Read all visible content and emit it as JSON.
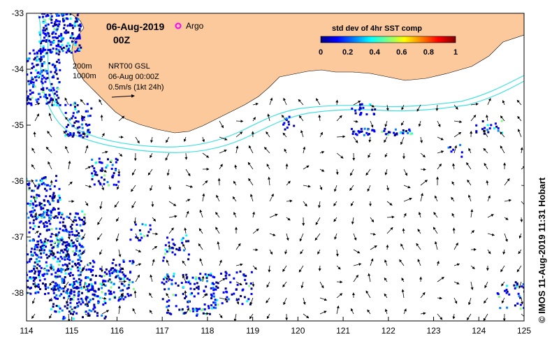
{
  "title": {
    "date": "06-Aug-2019",
    "time": "00Z",
    "argo_label": "Argo"
  },
  "legend": {
    "colorbar_title": "std dev of 4hr SST comp",
    "ticks": [
      "0",
      "0.2",
      "0.4",
      "0.6",
      "0.8",
      "1"
    ],
    "colors": [
      "#000080",
      "#0000ff",
      "#0080ff",
      "#00ffff",
      "#80ff80",
      "#ffff00",
      "#ff8000",
      "#ff0000",
      "#800000"
    ]
  },
  "info": {
    "contour_200": "200m",
    "contour_1000": "1000m",
    "product": "NRT00 GSL",
    "datetime": "06-Aug 00:00Z",
    "scale": "0.5m/s (1kt 24h)"
  },
  "axes": {
    "x_ticks": [
      "114",
      "115",
      "116",
      "117",
      "118",
      "119",
      "120",
      "121",
      "122",
      "123",
      "124",
      "125"
    ],
    "y_ticks": [
      "-33",
      "-34",
      "-35",
      "-36",
      "-37",
      "-38"
    ],
    "xlim": [
      114,
      125
    ],
    "ylim": [
      -38.5,
      -33
    ]
  },
  "credit": "© IMOS 11-Aug-2019 11:31 Hobart",
  "colors": {
    "land": "#fbc99b",
    "isobath": "#40e0e0"
  }
}
